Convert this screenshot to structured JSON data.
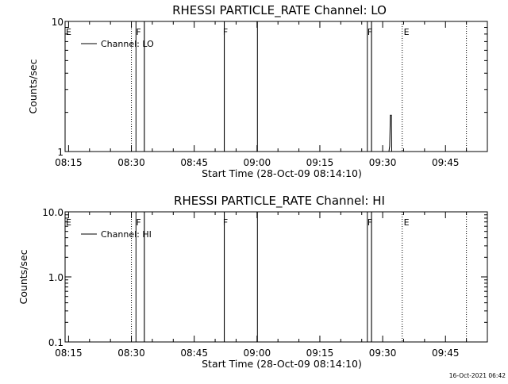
{
  "chart_data": [
    {
      "type": "line",
      "title": "RHESSI PARTICLE_RATE Channel: LO",
      "xlabel": "Start Time (28-Oct-09 08:14:10)",
      "ylabel": "Counts/sec",
      "y_scale": "log",
      "ylim": [
        1,
        10
      ],
      "y_tick_labels": [
        "1",
        "10"
      ],
      "x_tick_labels": [
        "08:15",
        "08:30",
        "08:45",
        "09:00",
        "09:15",
        "09:30",
        "09:45"
      ],
      "legend": "top-left",
      "series": [
        {
          "name": "Channel: LO",
          "points": [
            [
              "08:31:05",
              1
            ],
            [
              "08:31:05",
              10
            ],
            [
              "08:31:06",
              10
            ],
            [
              "08:31:06",
              1
            ],
            [
              "08:33:05",
              1
            ],
            [
              "08:33:05",
              10
            ],
            [
              "08:33:06",
              10
            ],
            [
              "08:33:06",
              1
            ],
            [
              "08:52:10",
              1
            ],
            [
              "08:52:10",
              10
            ],
            [
              "08:52:11",
              10
            ],
            [
              "08:52:11",
              1
            ],
            [
              "09:00:05",
              1
            ],
            [
              "09:00:05",
              10
            ],
            [
              "09:00:06",
              10
            ],
            [
              "09:00:06",
              1
            ],
            [
              "09:26:20",
              1
            ],
            [
              "09:26:20",
              10
            ],
            [
              "09:26:21",
              10
            ],
            [
              "09:26:21",
              1
            ],
            [
              "09:27:20",
              1
            ],
            [
              "09:27:20",
              10
            ],
            [
              "09:27:21",
              10
            ],
            [
              "09:27:21",
              1
            ],
            [
              "09:31:30",
              1
            ],
            [
              "09:31:40",
              1.1
            ],
            [
              "09:31:50",
              1.9
            ],
            [
              "09:32:05",
              1.9
            ],
            [
              "09:32:10",
              1.0
            ]
          ]
        }
      ],
      "flags": [
        {
          "label": "E",
          "time": "08:14:10"
        },
        {
          "label": "F",
          "time": "08:30:55"
        },
        {
          "label": "F",
          "time": "08:51:40"
        },
        {
          "label": "F",
          "time": "09:26:10"
        },
        {
          "label": "E",
          "time": "09:34:50"
        }
      ],
      "dotted_lines": [
        "08:30:00",
        "09:34:40",
        "09:50:00"
      ]
    },
    {
      "type": "line",
      "title": "RHESSI PARTICLE_RATE Channel: HI",
      "xlabel": "Start Time (28-Oct-09 08:14:10)",
      "ylabel": "Counts/sec",
      "y_scale": "log",
      "ylim": [
        0.1,
        10
      ],
      "y_tick_labels": [
        "0.1",
        "1.0",
        "10.0"
      ],
      "x_tick_labels": [
        "08:15",
        "08:30",
        "08:45",
        "09:00",
        "09:15",
        "09:30",
        "09:45"
      ],
      "legend": "top-left",
      "series": [
        {
          "name": "Channel: HI",
          "points": [
            [
              "08:31:05",
              0.1
            ],
            [
              "08:31:05",
              10
            ],
            [
              "08:31:06",
              10
            ],
            [
              "08:31:06",
              0.1
            ],
            [
              "08:33:05",
              0.1
            ],
            [
              "08:33:05",
              10
            ],
            [
              "08:33:06",
              10
            ],
            [
              "08:33:06",
              0.1
            ],
            [
              "08:52:10",
              0.1
            ],
            [
              "08:52:10",
              10
            ],
            [
              "08:52:11",
              10
            ],
            [
              "08:52:11",
              0.1
            ],
            [
              "09:00:05",
              0.1
            ],
            [
              "09:00:05",
              10
            ],
            [
              "09:00:06",
              10
            ],
            [
              "09:00:06",
              0.1
            ],
            [
              "09:26:20",
              0.1
            ],
            [
              "09:26:20",
              10
            ],
            [
              "09:26:21",
              10
            ],
            [
              "09:26:21",
              0.1
            ],
            [
              "09:27:20",
              0.1
            ],
            [
              "09:27:20",
              10
            ],
            [
              "09:27:21",
              10
            ],
            [
              "09:27:21",
              0.1
            ]
          ]
        }
      ],
      "flags": [
        {
          "label": "E",
          "time": "08:14:10"
        },
        {
          "label": "F",
          "time": "08:30:55"
        },
        {
          "label": "F",
          "time": "08:51:40"
        },
        {
          "label": "F",
          "time": "09:26:10"
        },
        {
          "label": "E",
          "time": "09:34:50"
        }
      ],
      "dotted_lines": [
        "08:30:00",
        "09:34:40",
        "09:50:00"
      ]
    }
  ],
  "timestamp": "16-Oct-2021 06:42"
}
